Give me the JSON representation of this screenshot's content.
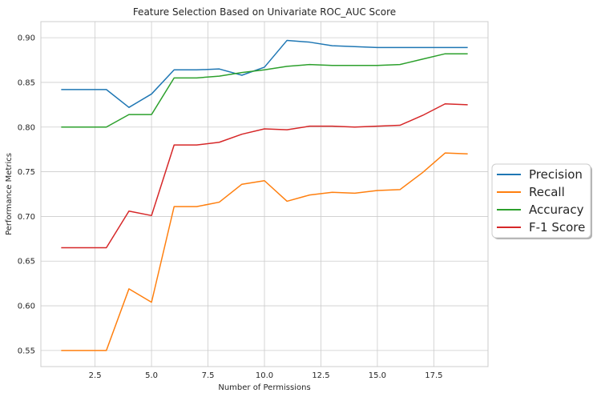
{
  "chart_data": {
    "type": "line",
    "title": "Feature Selection Based on Univariate ROC_AUC Score",
    "xlabel": "Number of Permissions",
    "ylabel": "Performance Metrics",
    "xlim": [
      0.1,
      19.9
    ],
    "ylim": [
      0.532,
      0.918
    ],
    "xticks": [
      2.5,
      5.0,
      7.5,
      10.0,
      12.5,
      15.0,
      17.5
    ],
    "xtick_labels": [
      "2.5",
      "5.0",
      "7.5",
      "10.0",
      "12.5",
      "15.0",
      "17.5"
    ],
    "yticks": [
      0.55,
      0.6,
      0.65,
      0.7,
      0.75,
      0.8,
      0.85,
      0.9
    ],
    "ytick_labels": [
      "0.55",
      "0.60",
      "0.65",
      "0.70",
      "0.75",
      "0.80",
      "0.85",
      "0.90"
    ],
    "grid": true,
    "legend_position": "outside-right",
    "x": [
      1,
      2,
      3,
      4,
      5,
      6,
      7,
      8,
      9,
      10,
      11,
      12,
      13,
      14,
      15,
      16,
      17,
      18,
      19
    ],
    "series": [
      {
        "name": "Precision",
        "color": "#1f77b4",
        "values": [
          0.842,
          0.842,
          0.842,
          0.822,
          0.837,
          0.864,
          0.864,
          0.865,
          0.858,
          0.867,
          0.897,
          0.895,
          0.891,
          0.89,
          0.889,
          0.889,
          0.889,
          0.889,
          0.889
        ]
      },
      {
        "name": "Recall",
        "color": "#ff7f0e",
        "values": [
          0.55,
          0.55,
          0.55,
          0.619,
          0.604,
          0.711,
          0.711,
          0.716,
          0.736,
          0.74,
          0.717,
          0.724,
          0.727,
          0.726,
          0.729,
          0.73,
          0.749,
          0.771,
          0.77
        ]
      },
      {
        "name": "Accuracy",
        "color": "#2ca02c",
        "values": [
          0.8,
          0.8,
          0.8,
          0.814,
          0.814,
          0.855,
          0.855,
          0.857,
          0.861,
          0.864,
          0.868,
          0.87,
          0.869,
          0.869,
          0.869,
          0.87,
          0.876,
          0.882,
          0.882
        ]
      },
      {
        "name": "F-1 Score",
        "color": "#d62728",
        "values": [
          0.665,
          0.665,
          0.665,
          0.706,
          0.701,
          0.78,
          0.78,
          0.783,
          0.792,
          0.798,
          0.797,
          0.801,
          0.801,
          0.8,
          0.801,
          0.802,
          0.813,
          0.826,
          0.825
        ]
      }
    ]
  }
}
